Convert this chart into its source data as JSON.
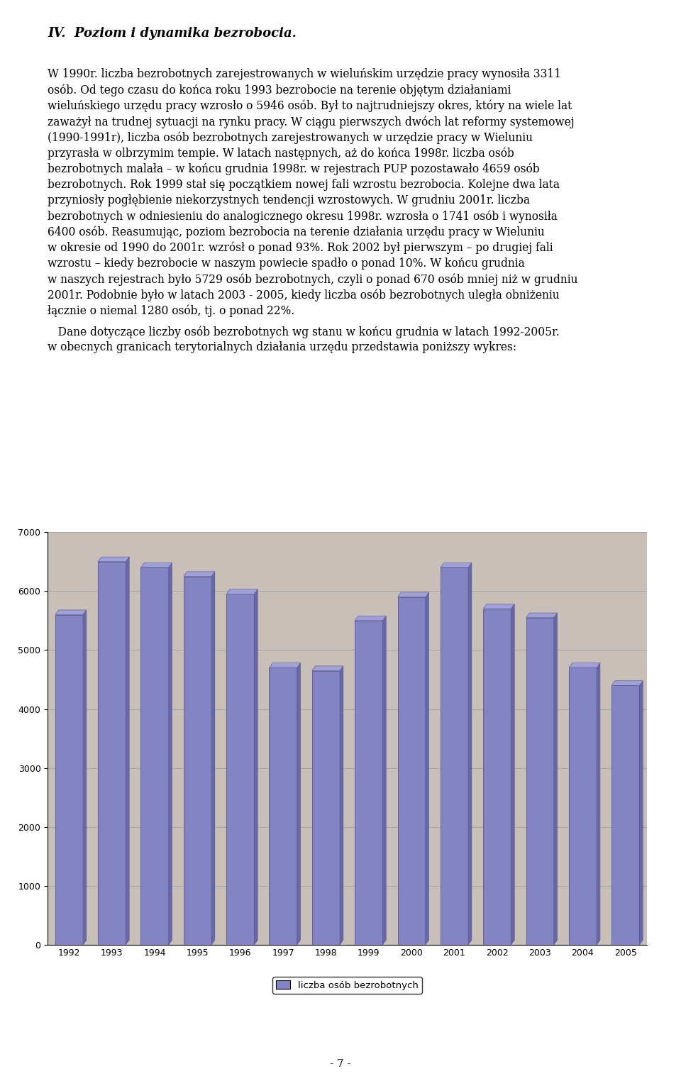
{
  "years": [
    "1992",
    "1993",
    "1994",
    "1995",
    "1996",
    "1997",
    "1998",
    "1999",
    "2000",
    "2001",
    "2002",
    "2003",
    "2004",
    "2005"
  ],
  "values": [
    5600,
    6500,
    6400,
    6250,
    5950,
    4700,
    4650,
    5500,
    5900,
    6400,
    5700,
    5550,
    4700,
    4400
  ],
  "bar_color_face": "#8484c4",
  "bar_color_edge": "#555588",
  "bar_color_top": "#a0a0d8",
  "bar_color_side": "#6868a8",
  "plot_bg_color": "#c8c0b8",
  "page_bg_color": "#ffffff",
  "ylim": [
    0,
    7000
  ],
  "yticks": [
    0,
    1000,
    2000,
    3000,
    4000,
    5000,
    6000,
    7000
  ],
  "legend_label": "liczba osób bezrobotnych",
  "legend_box_color": "#8484c4",
  "grid_color": "#999999",
  "tick_fontsize": 9,
  "heading": "IV.  Poziom i dynamika bezrobocia.",
  "para1": "W 1990r. liczba bezrobotnych zarejestrowanych w wieluńskim urzędzie pracy wynosiła 3311\nosób. Od tego czasu do końca roku 1993 bezrobocie na terenie objętym działaniami\nwieluńskiego urzędu pracy wzrosło o 5946 osób. Był to najtrudniejszy okres, który na wiele lat\nzaważył na trudnej sytuacji na rynku pracy. W ciągu pierwszych dwóch lat reformy systemowej\n(1990-1991r), liczba osób bezrobotnych zarejestrowanych w urzędzie pracy w Wieluniu\nprzyrasła w olbrzymim tempie. W latach następnych, aż do końca 1998r. liczba osób\nbezrobotnych malała – w końcu grudnia 1998r. w rejestrach PUP pozostawało 4659 osób\nbezrobotnych. Rok 1999 stał się początkiem nowej fali wzrostu bezrobocia. Kolejne dwa lata\nprzyniosły pogłębienie niekorzystnych tendencji wzrostowych. W grudniu 2001r. liczba\nbezrobotnych w odniesieniu do analogicznego okresu 1998r. wzrosła o 1741 osób i wynosiła\n6400 osób. Reasumując, poziom bezrobocia na terenie działania urzędu pracy w Wieluniu\nw okresie od 1990 do 2001r. wzrósł o ponad 93%. Rok 2002 był pierwszym – po drugiej fali\nwzrostu – kiedy bezrobocie w naszym powiecie spadło o ponad 10%. W końcu grudnia\nw naszych rejestrach było 5729 osób bezrobotnych, czyli o ponad 670 osób mniej niż w grudniu\n2001r. Podobnie było w latach 2003 - 2005, kiedy liczba osób bezrobotnych uległa obniżeniu\nłącznie o niemal 1280 osób, tj. o ponad 22%.",
  "para2": "   Dane dotyczące liczby osób bezrobotnych wg stanu w końcu grudnia w latach 1992-2005r.\nw obecnych granicach terytorialnych działania urzędu przedstawia poniższy wykres:",
  "page_number": "- 7 -"
}
